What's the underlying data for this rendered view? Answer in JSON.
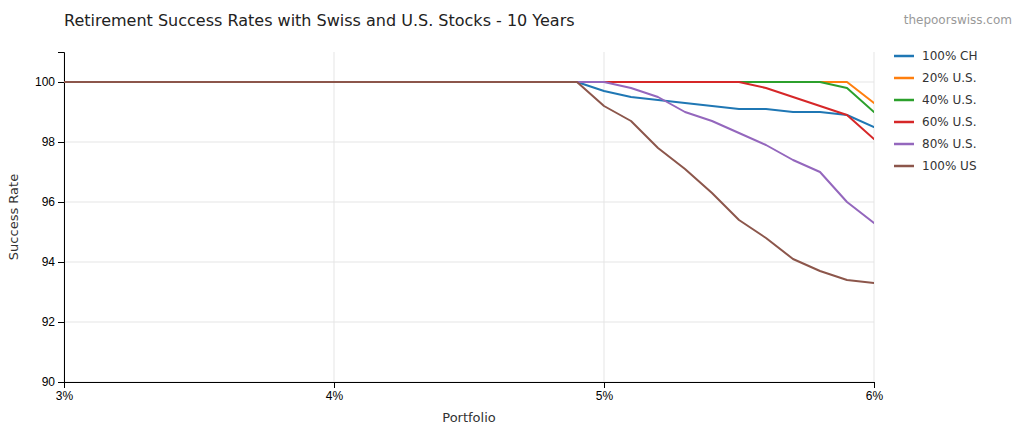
{
  "chart_data": {
    "type": "line",
    "title": "Retirement Success Rates with Swiss and U.S. Stocks - 10 Years",
    "x_label": "Portfolio",
    "y_label": "Success Rate",
    "annotations": [
      "thepoorswiss.com"
    ],
    "x": [
      3.0,
      3.5,
      4.0,
      4.1,
      4.2,
      4.3,
      4.4,
      4.5,
      4.6,
      4.7,
      4.8,
      4.9,
      5.0,
      5.1,
      5.2,
      5.3,
      5.4,
      5.5,
      5.6,
      5.7,
      5.8,
      5.9,
      6.0
    ],
    "series": [
      {
        "name": "100% CH",
        "values": [
          100,
          100,
          100,
          100,
          100,
          100,
          100,
          100,
          100,
          100,
          100,
          100,
          99.7,
          99.5,
          99.4,
          99.3,
          99.2,
          99.1,
          99.1,
          99.0,
          99.0,
          98.9,
          98.5
        ]
      },
      {
        "name": "20% U.S.",
        "values": [
          100,
          100,
          100,
          100,
          100,
          100,
          100,
          100,
          100,
          100,
          100,
          100,
          100,
          100,
          100,
          100,
          100,
          100,
          100,
          100,
          100,
          100,
          99.3
        ]
      },
      {
        "name": "40% U.S.",
        "values": [
          100,
          100,
          100,
          100,
          100,
          100,
          100,
          100,
          100,
          100,
          100,
          100,
          100,
          100,
          100,
          100,
          100,
          100,
          100,
          100,
          100,
          99.8,
          99.0
        ]
      },
      {
        "name": "60% U.S.",
        "values": [
          100,
          100,
          100,
          100,
          100,
          100,
          100,
          100,
          100,
          100,
          100,
          100,
          100,
          100,
          100,
          100,
          100,
          100,
          99.8,
          99.5,
          99.2,
          98.9,
          98.1
        ]
      },
      {
        "name": "80% U.S.",
        "values": [
          100,
          100,
          100,
          100,
          100,
          100,
          100,
          100,
          100,
          100,
          100,
          100,
          100,
          99.8,
          99.5,
          99.0,
          98.7,
          98.3,
          97.9,
          97.4,
          97.0,
          96.0,
          95.3
        ]
      },
      {
        "name": "100% US",
        "values": [
          100,
          100,
          100,
          100,
          100,
          100,
          100,
          100,
          100,
          100,
          100,
          100,
          99.2,
          98.7,
          97.8,
          97.1,
          96.3,
          95.4,
          94.8,
          94.1,
          93.7,
          93.4,
          93.3
        ]
      }
    ],
    "xlim": [
      3,
      6
    ],
    "ylim": [
      90,
      101
    ],
    "xticks": [
      {
        "value": 3,
        "label": "3%"
      },
      {
        "value": 4,
        "label": "4%"
      },
      {
        "value": 5,
        "label": "5%"
      },
      {
        "value": 6,
        "label": "6%"
      }
    ],
    "yticks": [
      90,
      92,
      94,
      96,
      98,
      100
    ],
    "grid": true,
    "legend": "right"
  }
}
